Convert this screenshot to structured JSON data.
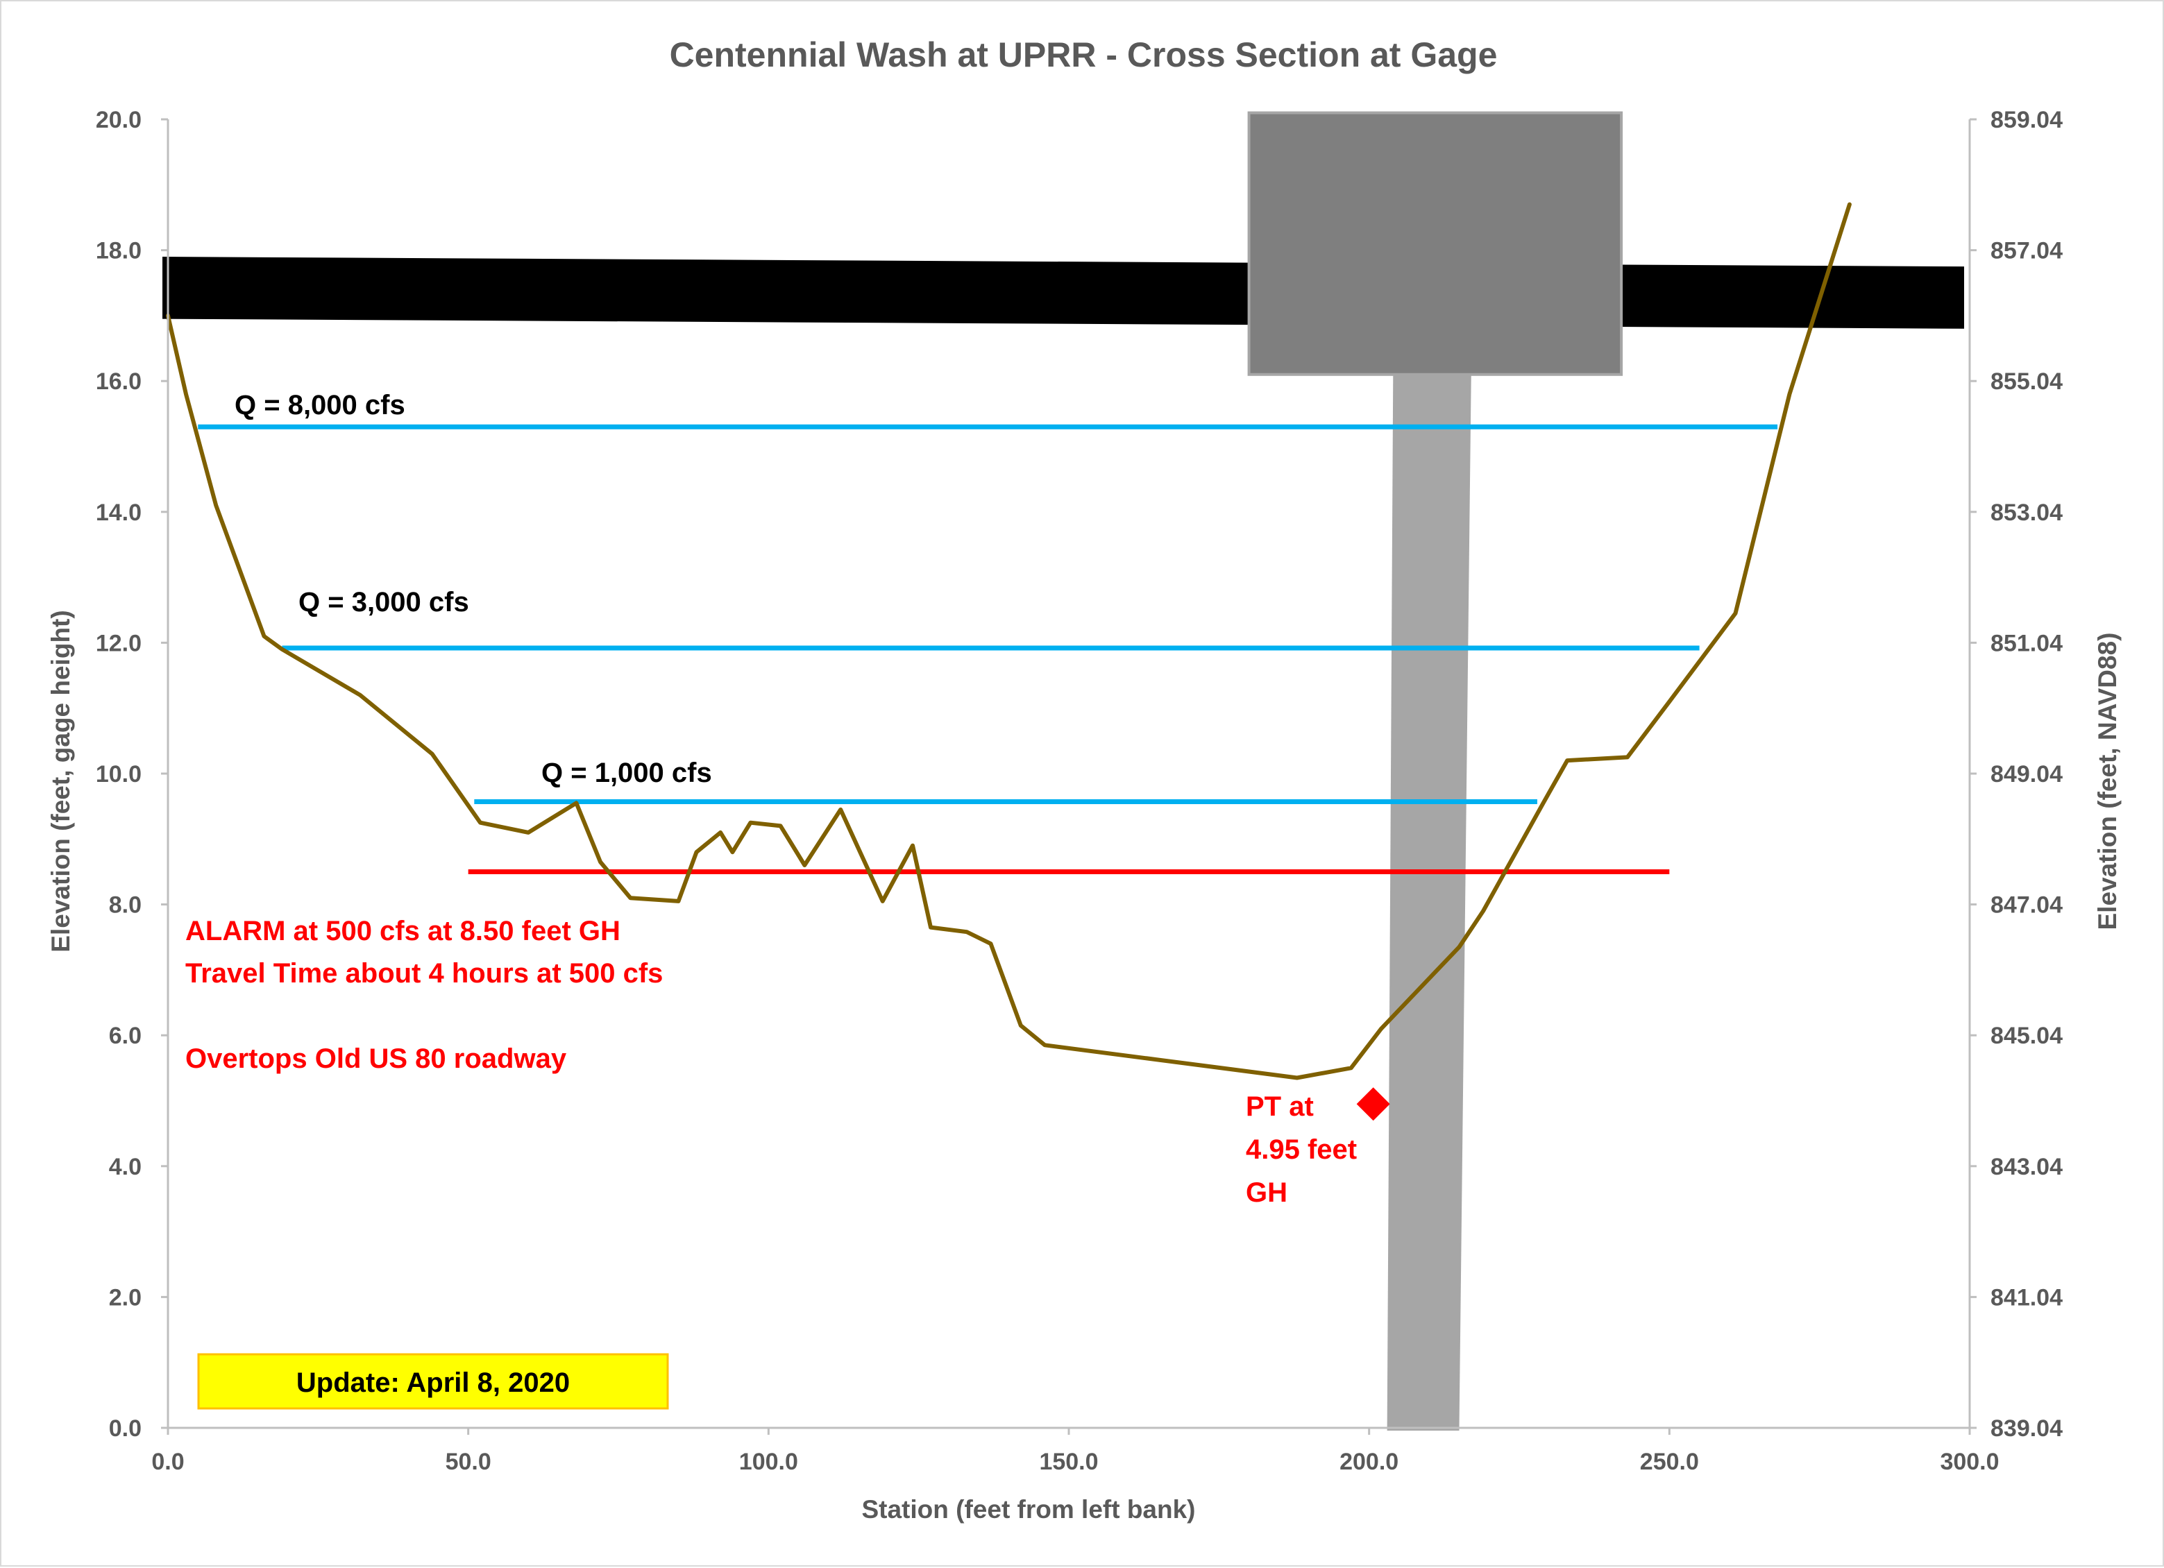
{
  "chart_data": {
    "type": "line",
    "title": "Centennial Wash at UPRR - Cross Section at Gage",
    "xlabel": "Station (feet from left bank)",
    "ylabel": "Elevation (feet, gage height)",
    "y2label": "Elevation (feet, NAVD88)",
    "xlim": [
      0,
      300
    ],
    "ylim": [
      0,
      20
    ],
    "y2lim": [
      839.04,
      859.04
    ],
    "x_ticks": [
      "0.0",
      "50.0",
      "100.0",
      "150.0",
      "200.0",
      "250.0",
      "300.0"
    ],
    "y_ticks": [
      "0.0",
      "2.0",
      "4.0",
      "6.0",
      "8.0",
      "10.0",
      "12.0",
      "14.0",
      "16.0",
      "18.0",
      "20.0"
    ],
    "y2_ticks": [
      "839.04",
      "841.04",
      "843.04",
      "845.04",
      "847.04",
      "849.04",
      "851.04",
      "853.04",
      "855.04",
      "857.04",
      "859.04"
    ],
    "grid": false,
    "legend": "none",
    "cross_section": {
      "name": "Channel cross section",
      "color": "#7f6000",
      "x": [
        0,
        3,
        8,
        16,
        19,
        32,
        44,
        52,
        60,
        68,
        72,
        77,
        85,
        88,
        92,
        94,
        97,
        102,
        106,
        112,
        119,
        124,
        127,
        133,
        137,
        142,
        146,
        188,
        197,
        202,
        215,
        219,
        229,
        233,
        243,
        250,
        261,
        270,
        280
      ],
      "y": [
        17.0,
        15.8,
        14.1,
        12.1,
        11.9,
        11.2,
        10.3,
        9.25,
        9.1,
        9.55,
        8.65,
        8.1,
        8.05,
        8.8,
        9.1,
        8.8,
        9.25,
        9.2,
        8.6,
        9.45,
        8.05,
        8.9,
        7.65,
        7.58,
        7.4,
        6.15,
        5.85,
        5.35,
        5.5,
        6.1,
        7.35,
        7.9,
        9.55,
        10.2,
        10.25,
        11.1,
        12.45,
        15.8,
        18.7
      ]
    },
    "flow_lines": [
      {
        "label": "Q = 8,000 cfs",
        "color": "#00b0f0",
        "x": [
          5,
          268
        ],
        "y": 15.3
      },
      {
        "label": "Q = 3,000 cfs",
        "color": "#00b0f0",
        "x": [
          19,
          255
        ],
        "y": 11.92
      },
      {
        "label": "Q = 1,000 cfs",
        "color": "#00b0f0",
        "x": [
          51,
          228
        ],
        "y": 9.57
      }
    ],
    "alarm_line": {
      "color": "#ff0000",
      "x": [
        50,
        250
      ],
      "y": 8.5
    },
    "roadway_band": {
      "color": "#000000",
      "x": [
        0,
        300
      ],
      "top_y": [
        17.9,
        17.75
      ],
      "bottom_y": [
        16.95,
        16.8
      ]
    },
    "pier_cap": {
      "color": "#7f7f7f",
      "x": [
        180,
        242
      ],
      "y": [
        16.1,
        20.1
      ]
    },
    "pier_column": {
      "color": "#a6a6a6",
      "x_top": [
        204,
        217
      ],
      "x_bottom": [
        203,
        215
      ],
      "y": [
        0,
        16.1
      ]
    },
    "pt_marker": {
      "x": 200,
      "y": 4.95,
      "color": "#ff0000"
    },
    "annotations": {
      "alarm_line1": "ALARM at 500 cfs at 8.50 feet GH",
      "alarm_line2": "Travel Time about 4 hours at 500 cfs",
      "overtops": "Overtops Old US 80 roadway",
      "pt_line1": "PT at",
      "pt_line2": "4.95 feet",
      "pt_line3": "GH"
    },
    "update_box": {
      "text": "Update: April 8, 2020",
      "fill": "#ffff00",
      "border": "#ffc000"
    }
  }
}
